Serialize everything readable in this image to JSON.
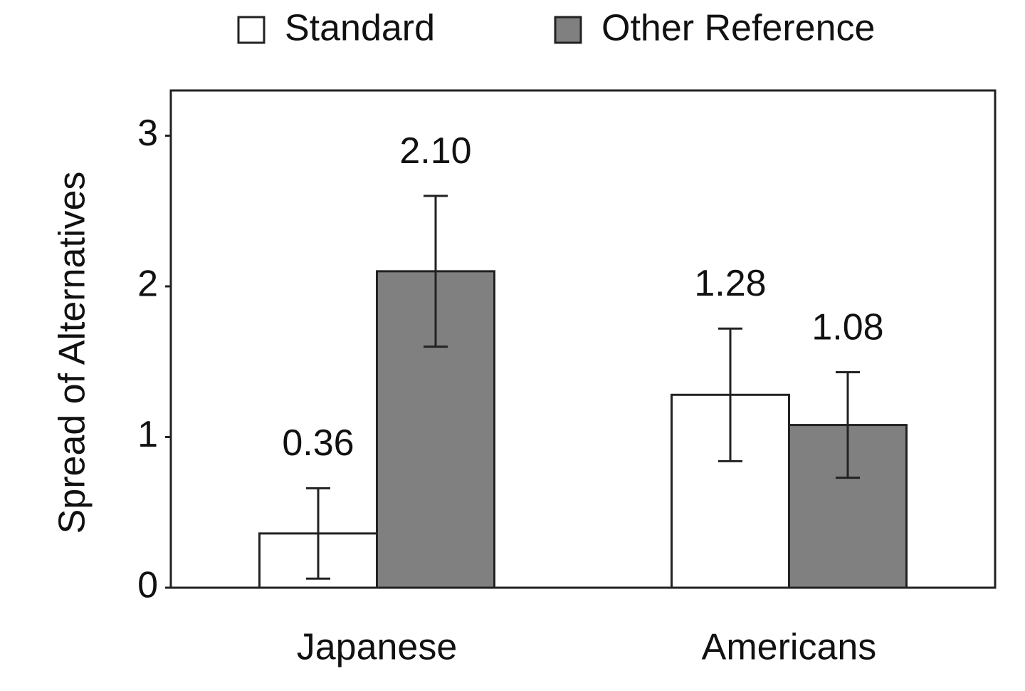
{
  "chart_data": {
    "type": "bar",
    "y_label": "Spread of Alternatives",
    "categories": [
      "Japanese",
      "Americans"
    ],
    "series": [
      {
        "name": "Standard",
        "color": "#ffffff",
        "values": [
          0.36,
          1.28
        ],
        "value_labels": [
          "0.36",
          "1.28"
        ],
        "errors": [
          0.3,
          0.44
        ]
      },
      {
        "name": "Other Reference",
        "color": "#808080",
        "values": [
          2.1,
          1.08
        ],
        "value_labels": [
          "2.10",
          "1.08"
        ],
        "errors": [
          0.5,
          0.35
        ]
      }
    ],
    "ylim": [
      0,
      3.3
    ],
    "yticks": [
      0,
      1,
      2,
      3
    ],
    "legend": "top"
  }
}
